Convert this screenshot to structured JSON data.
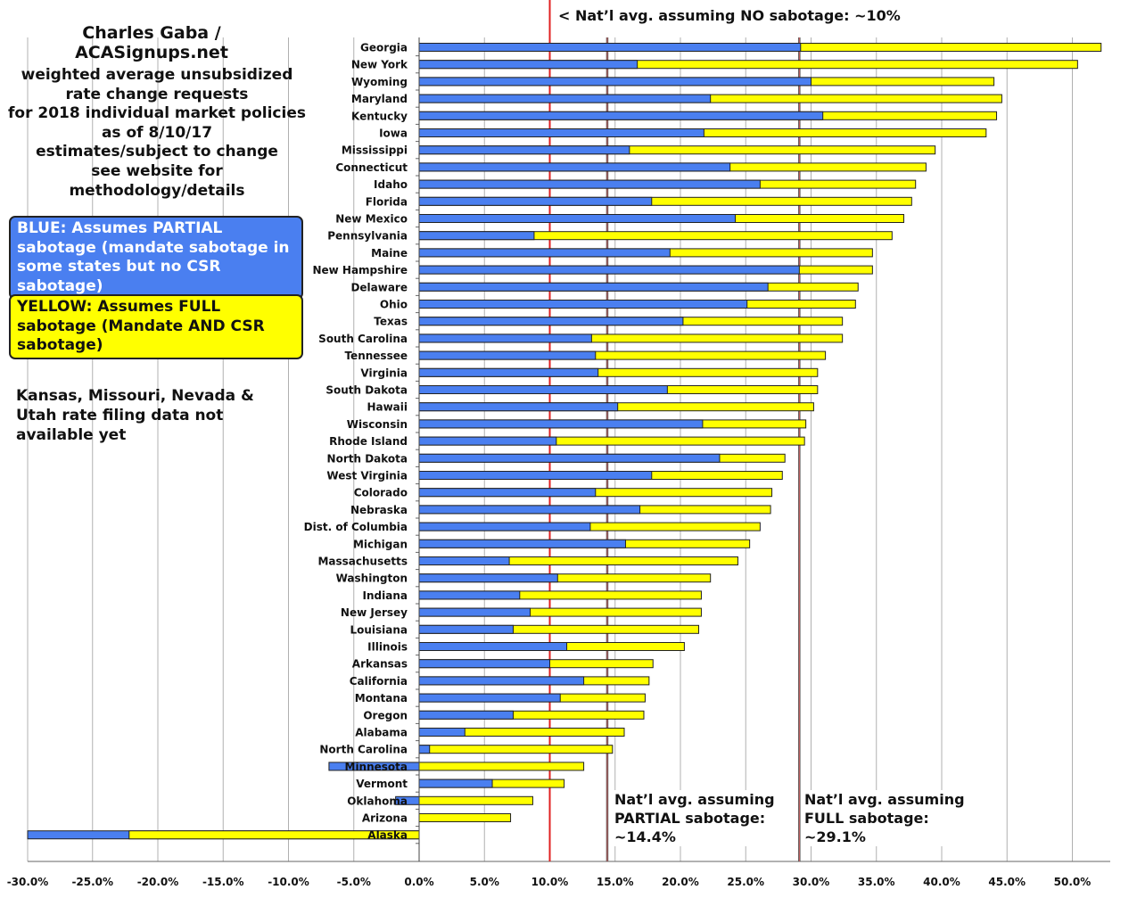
{
  "header": {
    "author": "Charles Gaba / ACASignups.net",
    "description": [
      "weighted average unsubsidized",
      "rate change requests",
      "for 2018 individual market policies",
      "as of 8/10/17",
      "estimates/subject to change",
      "see website for methodology/details"
    ],
    "blue_legend": "BLUE: Assumes PARTIAL sabotage (mandate sabotage in some states but no CSR sabotage)",
    "yellow_legend": "YELLOW: Assumes FULL sabotage (Mandate AND CSR sabotage)",
    "not_available": "Kansas, Missouri, Nevada & Utah rate filing data not available yet"
  },
  "colors": {
    "partial": "#4a7ff0",
    "full": "#ffff00",
    "no_sabotage_line": "#e02020",
    "avg_lines": "#555555"
  },
  "chart_data": {
    "type": "bar",
    "orientation": "horizontal",
    "grid": true,
    "xlim": [
      -30,
      52.9
    ],
    "xticks": [
      "-30.0%",
      "-25.0%",
      "-20.0%",
      "-15.0%",
      "-10.0%",
      "-5.0%",
      "0.0%",
      "5.0%",
      "10.0%",
      "15.0%",
      "20.0%",
      "25.0%",
      "30.0%",
      "35.0%",
      "40.0%",
      "45.0%",
      "50.0%"
    ],
    "categories": [
      "Georgia",
      "New York",
      "Wyoming",
      "Maryland",
      "Kentucky",
      "Iowa",
      "Mississippi",
      "Connecticut",
      "Idaho",
      "Florida",
      "New Mexico",
      "Pennsylvania",
      "Maine",
      "New Hampshire",
      "Delaware",
      "Ohio",
      "Texas",
      "South Carolina",
      "Tennessee",
      "Virginia",
      "South Dakota",
      "Hawaii",
      "Wisconsin",
      "Rhode Island",
      "North Dakota",
      "West Virginia",
      "Colorado",
      "Nebraska",
      "Dist. of Columbia",
      "Michigan",
      "Massachusetts",
      "Washington",
      "Indiana",
      "New Jersey",
      "Louisiana",
      "Illinois",
      "Arkansas",
      "California",
      "Montana",
      "Oregon",
      "Alabama",
      "North Carolina",
      "Minnesota",
      "Vermont",
      "Oklahoma",
      "Arizona",
      "Alaska"
    ],
    "series": [
      {
        "name": "BLUE: Assumes PARTIAL sabotage",
        "values": [
          29.2,
          16.7,
          30.0,
          22.3,
          30.9,
          21.8,
          16.1,
          23.8,
          26.1,
          17.8,
          24.2,
          8.8,
          19.2,
          29.1,
          26.7,
          25.1,
          20.2,
          13.2,
          13.5,
          13.7,
          19.0,
          15.2,
          21.7,
          10.5,
          23.0,
          17.8,
          13.5,
          16.9,
          13.1,
          15.8,
          6.9,
          10.6,
          7.7,
          8.5,
          7.2,
          11.3,
          10.0,
          12.6,
          10.8,
          7.2,
          3.5,
          0.8,
          -6.9,
          5.6,
          -1.8,
          0,
          -30.0
        ]
      },
      {
        "name": "YELLOW: Assumes FULL sabotage",
        "values": [
          52.2,
          50.4,
          44.0,
          44.6,
          44.2,
          43.4,
          39.5,
          38.8,
          38.0,
          37.7,
          37.1,
          36.2,
          34.7,
          34.7,
          33.6,
          33.4,
          32.4,
          32.4,
          31.1,
          30.5,
          30.5,
          30.2,
          29.6,
          29.5,
          28.0,
          27.8,
          27.0,
          26.9,
          26.1,
          25.3,
          24.4,
          22.3,
          21.6,
          21.6,
          21.4,
          20.3,
          17.9,
          17.6,
          17.3,
          17.2,
          15.7,
          14.8,
          12.6,
          11.1,
          8.7,
          7.0,
          -22.2
        ]
      }
    ],
    "reference_lines": [
      {
        "value": 10,
        "label": "< Nat’l avg. assuming NO sabotage: ~10%"
      },
      {
        "value": 14.4,
        "label": "Nat’l avg. assuming PARTIAL sabotage: ~14.4%",
        "lines": [
          "Nat’l avg. assuming",
          "PARTIAL sabotage:",
          "~14.4%"
        ]
      },
      {
        "value": 29.1,
        "label": "Nat’l avg. assuming FULL sabotage: ~29.1%",
        "lines": [
          "Nat’l avg. assuming",
          "FULL sabotage:",
          "~29.1%"
        ]
      }
    ]
  }
}
